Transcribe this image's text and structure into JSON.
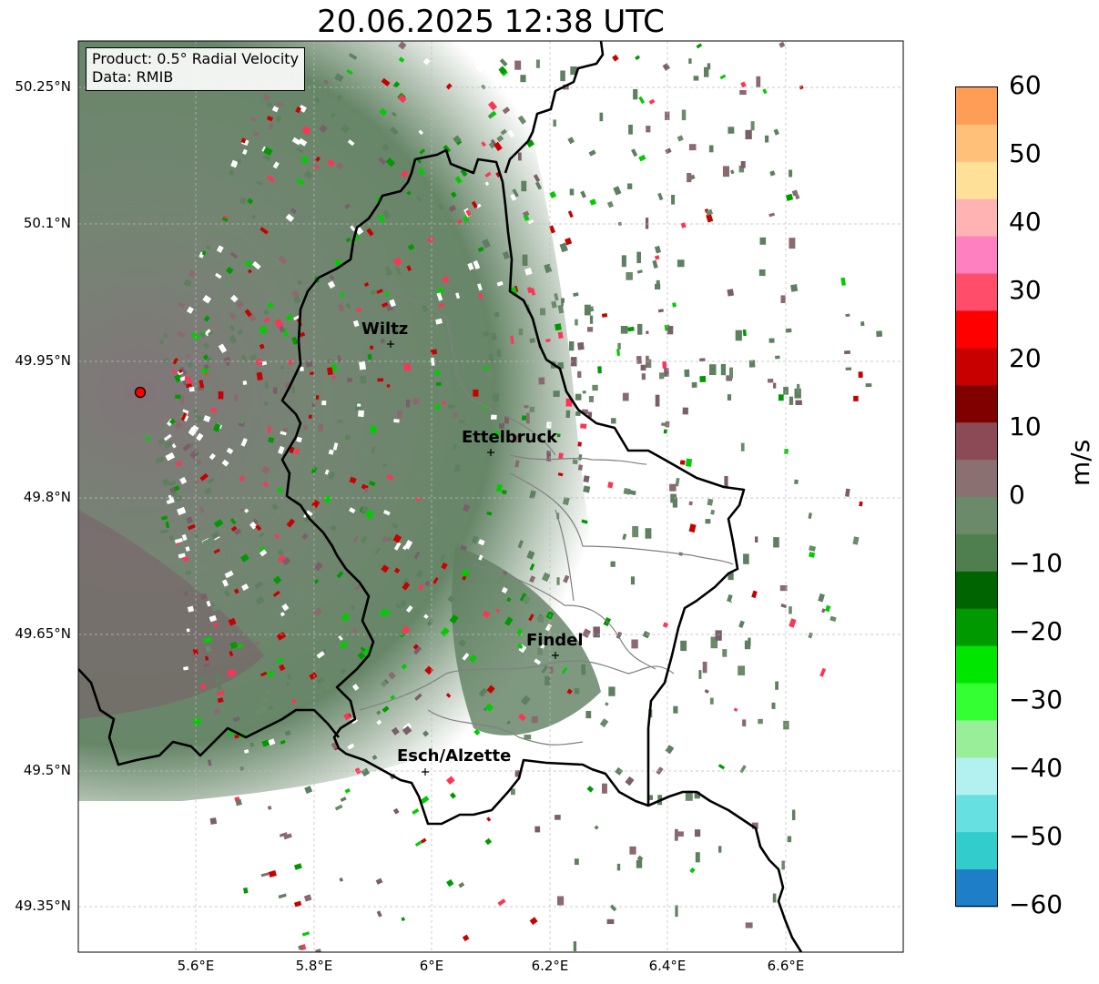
{
  "title": "20.06.2025 12:38 UTC",
  "info": {
    "product": "Product: 0.5° Radial Velocity",
    "source": "Data: RMIB"
  },
  "lat_labels": [
    "50.25°N",
    "50.1°N",
    "49.95°N",
    "49.8°N",
    "49.65°N",
    "49.5°N",
    "49.35°N"
  ],
  "lon_labels": [
    "5.6°E",
    "5.8°E",
    "6°E",
    "6.2°E",
    "6.4°E",
    "6.6°E"
  ],
  "cities": [
    {
      "name": "Wiltz"
    },
    {
      "name": "Ettelbruck"
    },
    {
      "name": "Findel"
    },
    {
      "name": "Esch/Alzette"
    }
  ],
  "colorbar": {
    "label": "m/s",
    "ticks": [
      "60",
      "50",
      "40",
      "30",
      "20",
      "10",
      "0",
      "−10",
      "−20",
      "−30",
      "−40",
      "−50",
      "−60"
    ],
    "range": [
      -60,
      60
    ],
    "colors": [
      "#ff9c55",
      "#ffc07a",
      "#ffe099",
      "#ffb3b3",
      "#ff80c0",
      "#ff4d6a",
      "#ff0000",
      "#c80000",
      "#800000",
      "#8b4a55",
      "#8a7070",
      "#6a8a6a",
      "#4f7f4f",
      "#006400",
      "#009900",
      "#00e600",
      "#33ff33",
      "#99ee99",
      "#b3f0f0",
      "#66e0e0",
      "#33cccc",
      "#1e7fc8"
    ]
  },
  "radar_site": {
    "color": "#ff0000"
  },
  "colors": {
    "border": "#000000",
    "canton_lines": "#808080",
    "grid": "#bbbbbb",
    "velocity_green": "#5e8060",
    "velocity_mauve": "#8a6a70"
  }
}
